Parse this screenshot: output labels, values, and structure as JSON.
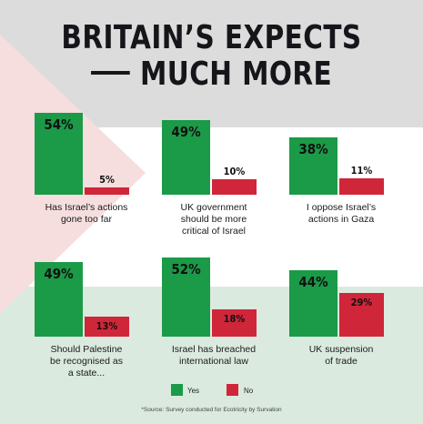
{
  "title_line1": "BRITAIN’S EXPECTS",
  "title_line2": "MUCH MORE",
  "colors": {
    "yes": "#1b9a48",
    "no": "#d0263a",
    "flag_grey": "#dcdcdc",
    "flag_red_tint": "#f6dede",
    "flag_green_tint": "#dbeadf"
  },
  "legend": {
    "yes": "Yes",
    "no": "No"
  },
  "source": "*Source: Survey conducted for Ecotricity by Survation",
  "chart_data": {
    "type": "bar",
    "categories": [
      "Has Israel’s actions gone too far",
      "UK government should be more critical of Israel",
      "I oppose Israel’s actions in Gaza",
      "Should Palestine be recognised as a state...",
      "Israel has breached international law",
      "UK suspension of trade"
    ],
    "series": [
      {
        "name": "Yes",
        "values": [
          54,
          49,
          38,
          49,
          52,
          44
        ]
      },
      {
        "name": "No",
        "values": [
          5,
          10,
          11,
          13,
          18,
          29
        ]
      }
    ],
    "value_labels": {
      "yes": [
        "54%",
        "49%",
        "38%",
        "49%",
        "52%",
        "44%"
      ],
      "no": [
        "5%",
        "10%",
        "11%",
        "13%",
        "18%",
        "29%"
      ]
    },
    "captions": [
      [
        "Has Israel’s actions",
        "gone too far"
      ],
      [
        "UK government",
        "should be more",
        "critical of Israel"
      ],
      [
        "I oppose Israel’s",
        "actions in Gaza"
      ],
      [
        "Should Palestine",
        "be recognised as",
        "a state..."
      ],
      [
        "Israel has breached",
        "international law"
      ],
      [
        "UK suspension",
        "of trade"
      ]
    ],
    "ylim": [
      0,
      60
    ],
    "legend_position": "bottom-center"
  }
}
